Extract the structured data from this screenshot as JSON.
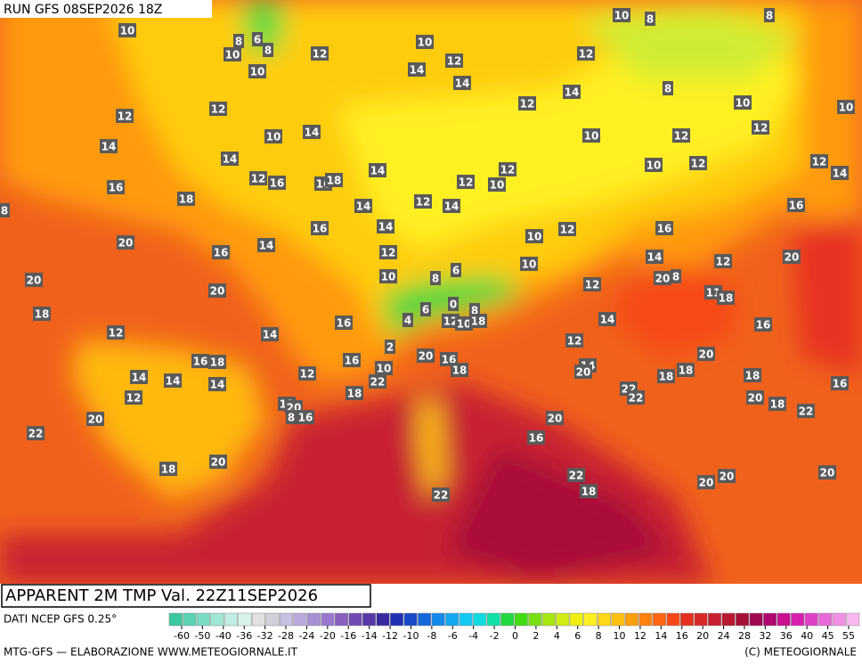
{
  "header": {
    "run": "RUN GFS 08SEP2026 18Z",
    "title": "APPARENT 2M TMP Val. 22Z11SEP2026"
  },
  "map_labels": [
    10,
    8,
    6,
    10,
    8,
    10,
    12,
    10,
    14,
    12,
    14,
    12,
    14,
    12,
    10,
    8,
    8,
    8,
    10,
    10,
    12,
    12,
    12,
    14,
    10,
    14,
    14,
    16,
    12,
    16,
    16,
    18,
    18,
    14,
    14,
    12,
    14,
    12,
    10,
    12,
    10,
    12,
    10,
    12,
    12,
    14,
    16,
    8,
    20,
    16,
    14,
    16,
    14,
    12,
    10,
    12,
    16,
    10,
    14,
    20,
    12,
    20,
    8,
    11,
    18,
    12,
    20,
    20,
    10,
    8,
    6,
    0,
    6,
    4,
    8,
    18,
    16,
    12,
    10,
    18,
    14,
    16,
    12,
    14,
    12,
    2,
    16,
    18,
    20,
    20,
    16,
    18,
    16,
    10,
    12,
    14,
    20,
    18,
    18,
    18,
    16,
    14,
    14,
    14,
    22,
    18,
    22,
    22,
    20,
    18,
    12,
    12,
    20,
    8,
    16,
    22,
    20,
    20,
    22,
    16,
    20,
    18,
    22,
    20,
    20,
    20,
    18,
    22
  ],
  "footer": {
    "source": "DATI NCEP GFS 0.25°",
    "credit": "MTG-GFS — ELABORAZIONE WWW.METEOGIORNALE.IT",
    "copyright": "(C) METEOGIORNALE"
  },
  "colorbar": {
    "ticks": [
      -60,
      -50,
      -40,
      -36,
      -32,
      -28,
      -24,
      -20,
      -16,
      -14,
      -12,
      -10,
      -8,
      -6,
      -4,
      -2,
      0,
      2,
      4,
      6,
      8,
      10,
      12,
      14,
      16,
      20,
      24,
      28,
      32,
      36,
      40,
      45,
      55
    ],
    "colors": [
      "#3cc8a0",
      "#5ad2b4",
      "#7adcc4",
      "#a0e6d6",
      "#c0eee4",
      "#d8f2ec",
      "#e0e0e0",
      "#d0d0d8",
      "#c8c0e0",
      "#b8a8dc",
      "#a890d4",
      "#9878cc",
      "#8860c0",
      "#7048b4",
      "#5838a8",
      "#3828a0",
      "#2030b4",
      "#1848c8",
      "#1468dc",
      "#1488e8",
      "#14a8f0",
      "#14c8f4",
      "#10dce0",
      "#10e0a8",
      "#20d840",
      "#40dc10",
      "#78e010",
      "#a8e610",
      "#d0ec10",
      "#f0f010",
      "#fff020",
      "#ffd818",
      "#ffc010",
      "#ffa010",
      "#ff8010",
      "#ff6410",
      "#f84818",
      "#e83020",
      "#d82828",
      "#c82030",
      "#b81830",
      "#a81038",
      "#a00850",
      "#b00870",
      "#c81090",
      "#d820b0",
      "#e040c8",
      "#e868d8",
      "#f090e4",
      "#f8b8f0"
    ]
  }
}
